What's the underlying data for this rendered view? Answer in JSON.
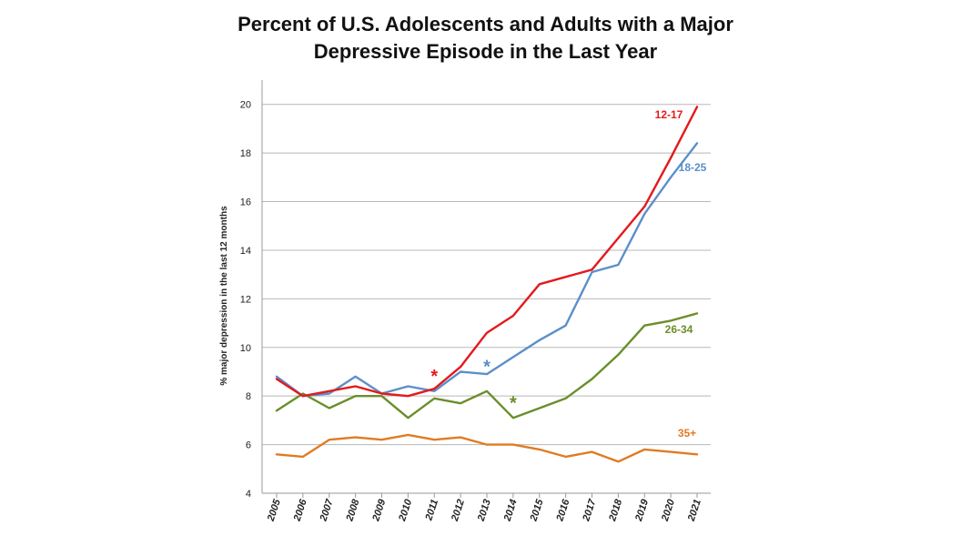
{
  "chart_data": {
    "type": "line",
    "title_lines": [
      "Percent of U.S. Adolescents and Adults with a Major",
      "Depressive Episode in the Last Year"
    ],
    "xlabel": "",
    "ylabel": "% major depression in the last 12 months",
    "ylim": [
      4,
      21
    ],
    "yticks": [
      4,
      6,
      8,
      10,
      12,
      14,
      16,
      18,
      20
    ],
    "grid": true,
    "categories": [
      "2005",
      "2006",
      "2007",
      "2008",
      "2009",
      "2010",
      "2011",
      "2012",
      "2013",
      "2014",
      "2015",
      "2016",
      "2017",
      "2018",
      "2019",
      "2020",
      "2021"
    ],
    "series": [
      {
        "name": "12-17",
        "color": "#e31a1c",
        "values": [
          8.7,
          8.0,
          8.2,
          8.4,
          8.1,
          8.0,
          8.3,
          9.2,
          10.6,
          11.3,
          12.6,
          12.9,
          13.2,
          14.5,
          15.8,
          17.8,
          19.9
        ]
      },
      {
        "name": "18-25",
        "color": "#5b8fc9",
        "values": [
          8.8,
          8.0,
          8.1,
          8.8,
          8.1,
          8.4,
          8.2,
          9.0,
          8.9,
          9.6,
          10.3,
          10.9,
          13.1,
          13.4,
          15.5,
          17.0,
          18.4
        ]
      },
      {
        "name": "26-34",
        "color": "#6b8e2a",
        "values": [
          7.4,
          8.1,
          7.5,
          8.0,
          8.0,
          7.1,
          7.9,
          7.7,
          8.2,
          7.1,
          7.5,
          7.9,
          8.7,
          9.7,
          10.9,
          11.1,
          11.4
        ]
      },
      {
        "name": "35+",
        "color": "#e07b24",
        "values": [
          5.6,
          5.5,
          6.2,
          6.3,
          6.2,
          6.4,
          6.2,
          6.3,
          6.0,
          6.0,
          5.8,
          5.5,
          5.7,
          5.3,
          5.8,
          5.7,
          5.6
        ]
      }
    ],
    "annotations": [
      {
        "text": "*",
        "x": "2011",
        "y": 8.9,
        "series": "12-17",
        "color": "#e31a1c"
      },
      {
        "text": "*",
        "x": "2013",
        "y": 9.3,
        "series": "18-25",
        "color": "#5b8fc9"
      },
      {
        "text": "*",
        "x": "2014",
        "y": 7.8,
        "series": "26-34",
        "color": "#6b8e2a"
      }
    ]
  }
}
